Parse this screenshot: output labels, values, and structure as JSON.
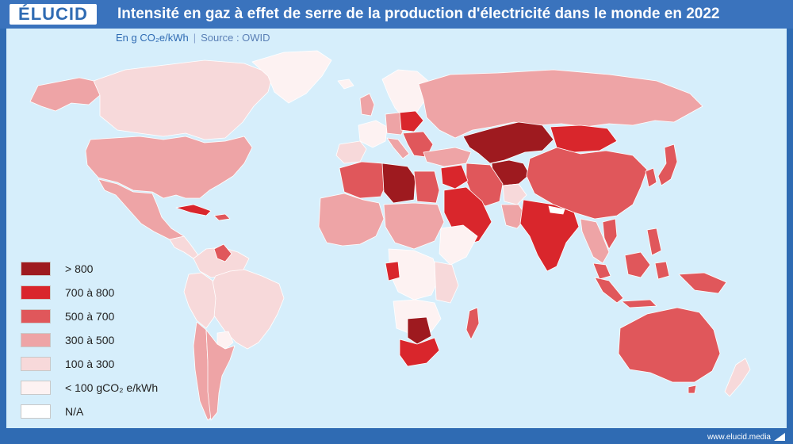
{
  "header": {
    "logo": "ÉLUCID",
    "title": "Intensité en gaz à effet de serre de la production d'électricité dans le monde en 2022"
  },
  "subtitle": {
    "unit": "En g CO₂e/kWh",
    "separator": "|",
    "source": "Source : OWID"
  },
  "legend": [
    {
      "label": "> 800",
      "color": "#9e1a1f"
    },
    {
      "label": "700 à 800",
      "color": "#d9262c"
    },
    {
      "label": "500 à 700",
      "color": "#e0575b"
    },
    {
      "label": "300 à 500",
      "color": "#eea4a6"
    },
    {
      "label": "100 à 300",
      "color": "#f7d9da"
    },
    {
      "label": "< 100 gCO₂ e/kWh",
      "color": "#fdf2f2"
    },
    {
      "label": "N/A",
      "color": "#ffffff"
    }
  ],
  "footer": {
    "url": "www.elucid.media"
  },
  "colors": {
    "brand": "#2f6bb3",
    "ocean": "#d6eefb",
    "border": "#ffffff"
  }
}
